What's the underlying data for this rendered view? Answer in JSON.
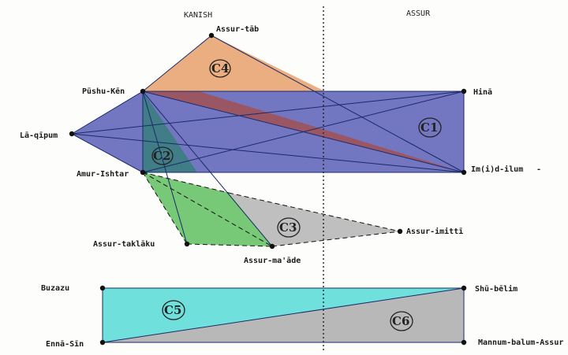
{
  "regions": {
    "left": "KANISH",
    "right": "ASSUR"
  },
  "nodes": {
    "assur_tab": "Assur-tāb",
    "pushu_kin": "Pūshu-Kēn",
    "hina": "Hinā",
    "la_qipum": "Lā-qīpum",
    "amur_ishtar": "Amur-Ishtar",
    "imdilum": "Im(i)d-ilum",
    "assur_imitti": "Assur-imittī",
    "assur_taklaku": "Assur-taklāku",
    "assur_mutappil": "Assur-ma'āde",
    "buzazu": "Buzazu",
    "shu_belim": "Shū-bēlim",
    "enna_sin": "Ennā-Sīn",
    "mannum_balum_assur": "Mannum-balum-Assur"
  },
  "cliques": {
    "c1": "C1",
    "c2": "C2",
    "c3": "C3",
    "c4": "C4",
    "c5": "C5",
    "c6": "C6"
  },
  "colors": {
    "c1": "#5b5fb6",
    "c2": "#2f7f73",
    "c3": "#b8b8b8",
    "c4": "#e8a06a",
    "c5": "#6fe0dc",
    "c6": "#b8b8b8",
    "overlap": "#a0525a"
  }
}
